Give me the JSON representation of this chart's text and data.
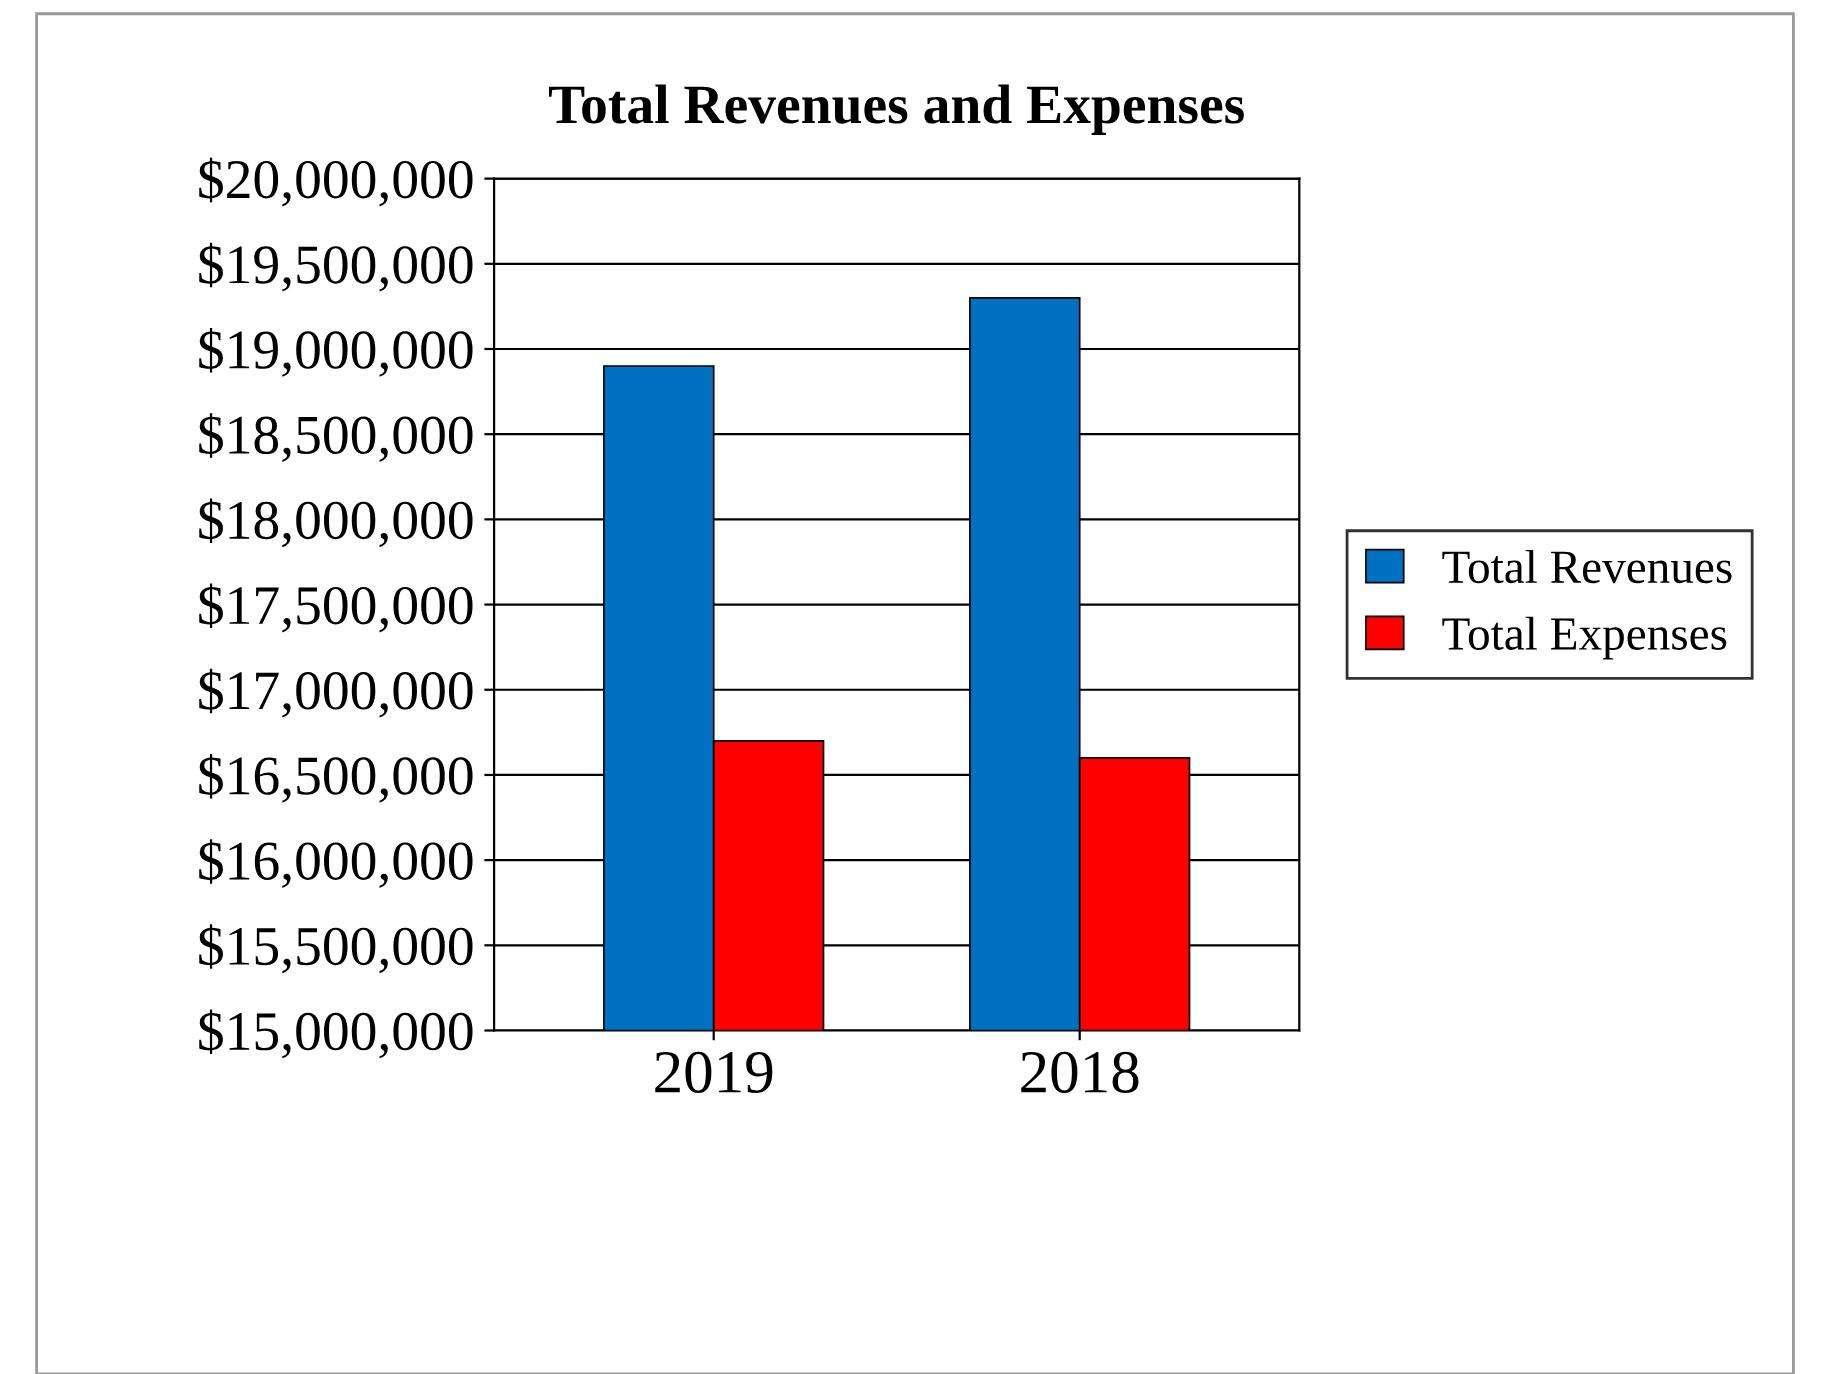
{
  "chart_data": {
    "type": "bar",
    "title": "Total Revenues and Expenses",
    "categories": [
      "2019",
      "2018"
    ],
    "series": [
      {
        "name": "Total Revenues",
        "color": "#0070c0",
        "values": [
          18900000,
          19300000
        ]
      },
      {
        "name": "Total Expenses",
        "color": "#ff0000",
        "values": [
          16700000,
          16600000
        ]
      }
    ],
    "ylim": [
      15000000,
      20000000
    ],
    "yticks": [
      {
        "value": 15000000,
        "label": "$15,000,000"
      },
      {
        "value": 15500000,
        "label": "$15,500,000"
      },
      {
        "value": 16000000,
        "label": "$16,000,000"
      },
      {
        "value": 16500000,
        "label": "$16,500,000"
      },
      {
        "value": 17000000,
        "label": "$17,000,000"
      },
      {
        "value": 17500000,
        "label": "$17,500,000"
      },
      {
        "value": 18000000,
        "label": "$18,000,000"
      },
      {
        "value": 18500000,
        "label": "$18,500,000"
      },
      {
        "value": 19000000,
        "label": "$19,000,000"
      },
      {
        "value": 19500000,
        "label": "$19,500,000"
      },
      {
        "value": 20000000,
        "label": "$20,000,000"
      }
    ],
    "grid": "y",
    "legend": "right"
  }
}
